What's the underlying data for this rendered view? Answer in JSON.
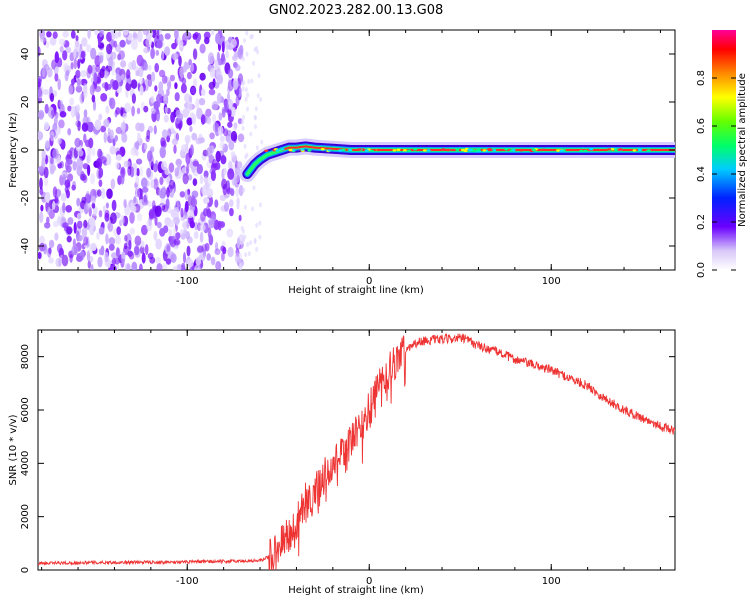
{
  "title": "GN02.2023.282.00.13.G08",
  "chart_data": [
    {
      "type": "heatmap",
      "xlabel": "Height of straight line (km)",
      "ylabel": "Frequency (Hz)",
      "xlim": [
        -182,
        168
      ],
      "ylim": [
        -50,
        50
      ],
      "x_ticks": [
        -100,
        0,
        100
      ],
      "y_ticks": [
        -40,
        -20,
        0,
        20,
        40
      ],
      "colorbar": {
        "label": "Normalized spectral amplitude",
        "range": [
          0,
          1
        ],
        "ticks": [
          "0.0",
          "0.2",
          "0.4",
          "0.6",
          "0.8"
        ]
      },
      "noise_region": {
        "x_from": -182,
        "x_to": -70,
        "freq_range": [
          -50,
          50
        ]
      },
      "signal_trace": [
        {
          "x": -67,
          "freq": -10
        },
        {
          "x": -63,
          "freq": -6
        },
        {
          "x": -60,
          "freq": -4
        },
        {
          "x": -56,
          "freq": -2
        },
        {
          "x": -52,
          "freq": -1
        },
        {
          "x": -48,
          "freq": 0
        },
        {
          "x": -44,
          "freq": 1
        },
        {
          "x": -40,
          "freq": 1
        },
        {
          "x": -35,
          "freq": 1.5
        },
        {
          "x": -30,
          "freq": 1
        },
        {
          "x": -20,
          "freq": 0.5
        },
        {
          "x": -10,
          "freq": 0
        },
        {
          "x": 0,
          "freq": 0
        },
        {
          "x": 50,
          "freq": 0
        },
        {
          "x": 100,
          "freq": 0
        },
        {
          "x": 168,
          "freq": 0
        }
      ]
    },
    {
      "type": "line",
      "xlabel": "Height of straight line (km)",
      "ylabel": "SNR (10 * v/v)",
      "xlim": [
        -182,
        168
      ],
      "ylim": [
        0,
        9000
      ],
      "x_ticks": [
        -100,
        0,
        100
      ],
      "y_ticks": [
        0,
        2000,
        4000,
        6000,
        8000
      ],
      "series_color": "#ee3333",
      "x": [
        -182,
        -150,
        -100,
        -80,
        -60,
        -52,
        -45,
        -40,
        -35,
        -30,
        -25,
        -20,
        -15,
        -10,
        -5,
        0,
        5,
        10,
        15,
        20,
        25,
        30,
        40,
        50,
        55,
        60,
        70,
        80,
        90,
        100,
        110,
        120,
        130,
        140,
        150,
        160,
        168
      ],
      "y": [
        250,
        280,
        300,
        320,
        350,
        600,
        1300,
        1800,
        2600,
        2900,
        3500,
        3900,
        4300,
        4800,
        5300,
        6000,
        6800,
        7400,
        7900,
        8300,
        8500,
        8600,
        8650,
        8700,
        8600,
        8400,
        8200,
        7900,
        7700,
        7500,
        7200,
        6900,
        6400,
        6000,
        5700,
        5400,
        5200
      ]
    }
  ]
}
